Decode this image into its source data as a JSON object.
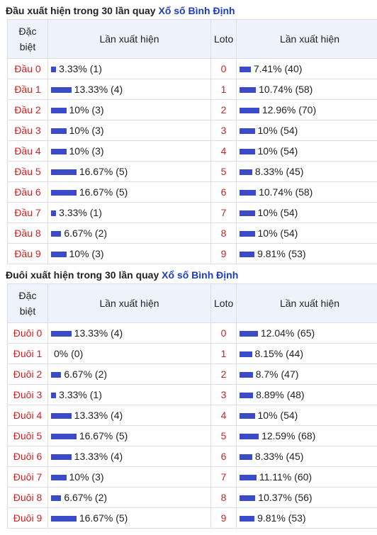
{
  "sections": [
    {
      "title": "Đầu xuất hiện trong 30 lần quay",
      "link": "Xổ số Bình Định",
      "headers": [
        "Đặc biệt",
        "Lần xuất hiện",
        "Loto",
        "Lần xuất hiện"
      ],
      "rows": [
        {
          "name": "Đầu 0",
          "pct": 3.33,
          "pct_label": "3.33% (1)",
          "loto": "0",
          "loto_pct": 7.41,
          "loto_label": "7.41% (40)"
        },
        {
          "name": "Đầu 1",
          "pct": 13.33,
          "pct_label": "13.33% (4)",
          "loto": "1",
          "loto_pct": 10.74,
          "loto_label": "10.74% (58)"
        },
        {
          "name": "Đầu 2",
          "pct": 10,
          "pct_label": "10% (3)",
          "loto": "2",
          "loto_pct": 12.96,
          "loto_label": "12.96% (70)"
        },
        {
          "name": "Đầu 3",
          "pct": 10,
          "pct_label": "10% (3)",
          "loto": "3",
          "loto_pct": 10,
          "loto_label": "10% (54)"
        },
        {
          "name": "Đầu 4",
          "pct": 10,
          "pct_label": "10% (3)",
          "loto": "4",
          "loto_pct": 10,
          "loto_label": "10% (54)"
        },
        {
          "name": "Đầu 5",
          "pct": 16.67,
          "pct_label": "16.67% (5)",
          "loto": "5",
          "loto_pct": 8.33,
          "loto_label": "8.33% (45)"
        },
        {
          "name": "Đầu 6",
          "pct": 16.67,
          "pct_label": "16.67% (5)",
          "loto": "6",
          "loto_pct": 10.74,
          "loto_label": "10.74% (58)"
        },
        {
          "name": "Đầu 7",
          "pct": 3.33,
          "pct_label": "3.33% (1)",
          "loto": "7",
          "loto_pct": 10,
          "loto_label": "10% (54)"
        },
        {
          "name": "Đầu 8",
          "pct": 6.67,
          "pct_label": "6.67% (2)",
          "loto": "8",
          "loto_pct": 10,
          "loto_label": "10% (54)"
        },
        {
          "name": "Đầu 9",
          "pct": 10,
          "pct_label": "10% (3)",
          "loto": "9",
          "loto_pct": 9.81,
          "loto_label": "9.81% (53)"
        }
      ]
    },
    {
      "title": "Đuôi xuất hiện trong 30 lần quay",
      "link": "Xổ số Bình Định",
      "headers": [
        "Đặc biệt",
        "Lần xuất hiện",
        "Loto",
        "Lần xuất hiện"
      ],
      "rows": [
        {
          "name": "Đuôi 0",
          "pct": 13.33,
          "pct_label": "13.33% (4)",
          "loto": "0",
          "loto_pct": 12.04,
          "loto_label": "12.04% (65)"
        },
        {
          "name": "Đuôi 1",
          "pct": 0,
          "pct_label": "0% (0)",
          "loto": "1",
          "loto_pct": 8.15,
          "loto_label": "8.15% (44)"
        },
        {
          "name": "Đuôi 2",
          "pct": 6.67,
          "pct_label": "6.67% (2)",
          "loto": "2",
          "loto_pct": 8.7,
          "loto_label": "8.7% (47)"
        },
        {
          "name": "Đuôi 3",
          "pct": 3.33,
          "pct_label": "3.33% (1)",
          "loto": "3",
          "loto_pct": 8.89,
          "loto_label": "8.89% (48)"
        },
        {
          "name": "Đuôi 4",
          "pct": 13.33,
          "pct_label": "13.33% (4)",
          "loto": "4",
          "loto_pct": 10,
          "loto_label": "10% (54)"
        },
        {
          "name": "Đuôi 5",
          "pct": 16.67,
          "pct_label": "16.67% (5)",
          "loto": "5",
          "loto_pct": 12.59,
          "loto_label": "12.59% (68)"
        },
        {
          "name": "Đuôi 6",
          "pct": 13.33,
          "pct_label": "13.33% (4)",
          "loto": "6",
          "loto_pct": 8.33,
          "loto_label": "8.33% (45)"
        },
        {
          "name": "Đuôi 7",
          "pct": 10,
          "pct_label": "10% (3)",
          "loto": "7",
          "loto_pct": 11.11,
          "loto_label": "11.11% (60)"
        },
        {
          "name": "Đuôi 8",
          "pct": 6.67,
          "pct_label": "6.67% (2)",
          "loto": "8",
          "loto_pct": 10.37,
          "loto_label": "10.37% (56)"
        },
        {
          "name": "Đuôi 9",
          "pct": 16.67,
          "pct_label": "16.67% (5)",
          "loto": "9",
          "loto_pct": 9.81,
          "loto_label": "9.81% (53)"
        }
      ]
    }
  ]
}
